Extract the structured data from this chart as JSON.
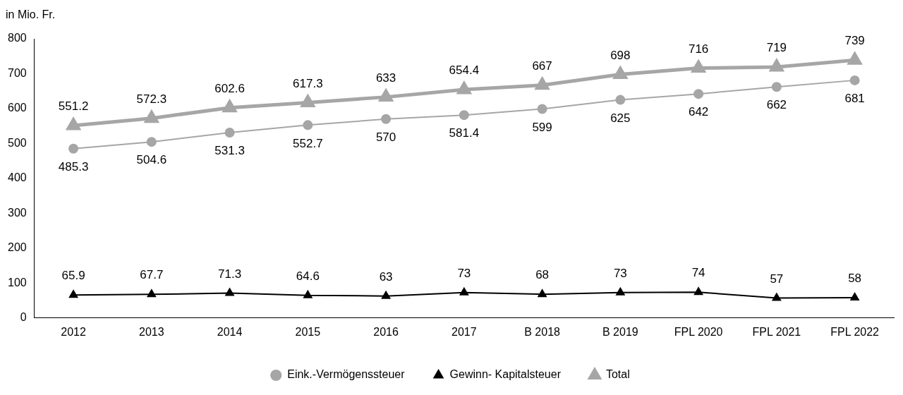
{
  "chart_data": {
    "type": "line",
    "ylabel": "in Mio. Fr.",
    "categories": [
      "2012",
      "2013",
      "2014",
      "2015",
      "2016",
      "2017",
      "B 2018",
      "B 2019",
      "FPL 2020",
      "FPL 2021",
      "FPL 2022"
    ],
    "series": [
      {
        "name": "Eink.-Vermögenssteuer",
        "color": "#a6a6a6",
        "marker": "circle",
        "values": [
          485.3,
          504.6,
          531.3,
          552.7,
          570,
          581.4,
          599,
          625,
          642,
          662,
          681
        ]
      },
      {
        "name": "Gewinn- Kapitalsteuer",
        "color": "#000000",
        "marker": "triangle",
        "values": [
          65.9,
          67.7,
          71.3,
          64.6,
          63,
          73,
          68,
          73,
          74,
          57,
          58
        ]
      },
      {
        "name": "Total",
        "color": "#a6a6a6",
        "marker": "triangle",
        "values": [
          551.2,
          572.3,
          602.6,
          617.3,
          633,
          654.4,
          667,
          698,
          716,
          719,
          739
        ]
      }
    ],
    "ylim": [
      0,
      800
    ],
    "yticks": [
      0,
      100,
      200,
      300,
      400,
      500,
      600,
      700,
      800
    ],
    "grid": false,
    "legend": "bottom",
    "data_labels": true,
    "line_style": "solid"
  }
}
